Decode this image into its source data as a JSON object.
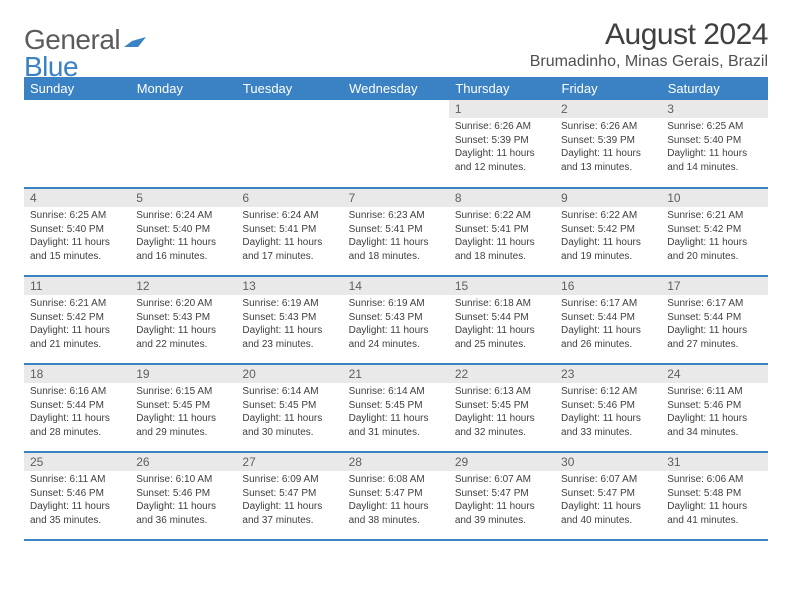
{
  "logo": {
    "word1": "General",
    "word2": "Blue"
  },
  "title": "August 2024",
  "location": "Brumadinho, Minas Gerais, Brazil",
  "colors": {
    "header_bg": "#3b82c4",
    "header_text": "#ffffff",
    "daynum_bg": "#e9e9e9",
    "daynum_text": "#606060",
    "body_text": "#404040",
    "rule": "#3b82c4",
    "logo_gray": "#5b5b5b",
    "logo_blue": "#3b82c4"
  },
  "typography": {
    "title_fontsize": 30,
    "location_fontsize": 16,
    "header_fontsize": 13,
    "daynum_fontsize": 12,
    "body_fontsize": 10
  },
  "weekdays": [
    "Sunday",
    "Monday",
    "Tuesday",
    "Wednesday",
    "Thursday",
    "Friday",
    "Saturday"
  ],
  "weeks": [
    [
      null,
      null,
      null,
      null,
      {
        "n": "1",
        "sr": "Sunrise: 6:26 AM",
        "ss": "Sunset: 5:39 PM",
        "d1": "Daylight: 11 hours",
        "d2": "and 12 minutes."
      },
      {
        "n": "2",
        "sr": "Sunrise: 6:26 AM",
        "ss": "Sunset: 5:39 PM",
        "d1": "Daylight: 11 hours",
        "d2": "and 13 minutes."
      },
      {
        "n": "3",
        "sr": "Sunrise: 6:25 AM",
        "ss": "Sunset: 5:40 PM",
        "d1": "Daylight: 11 hours",
        "d2": "and 14 minutes."
      }
    ],
    [
      {
        "n": "4",
        "sr": "Sunrise: 6:25 AM",
        "ss": "Sunset: 5:40 PM",
        "d1": "Daylight: 11 hours",
        "d2": "and 15 minutes."
      },
      {
        "n": "5",
        "sr": "Sunrise: 6:24 AM",
        "ss": "Sunset: 5:40 PM",
        "d1": "Daylight: 11 hours",
        "d2": "and 16 minutes."
      },
      {
        "n": "6",
        "sr": "Sunrise: 6:24 AM",
        "ss": "Sunset: 5:41 PM",
        "d1": "Daylight: 11 hours",
        "d2": "and 17 minutes."
      },
      {
        "n": "7",
        "sr": "Sunrise: 6:23 AM",
        "ss": "Sunset: 5:41 PM",
        "d1": "Daylight: 11 hours",
        "d2": "and 18 minutes."
      },
      {
        "n": "8",
        "sr": "Sunrise: 6:22 AM",
        "ss": "Sunset: 5:41 PM",
        "d1": "Daylight: 11 hours",
        "d2": "and 18 minutes."
      },
      {
        "n": "9",
        "sr": "Sunrise: 6:22 AM",
        "ss": "Sunset: 5:42 PM",
        "d1": "Daylight: 11 hours",
        "d2": "and 19 minutes."
      },
      {
        "n": "10",
        "sr": "Sunrise: 6:21 AM",
        "ss": "Sunset: 5:42 PM",
        "d1": "Daylight: 11 hours",
        "d2": "and 20 minutes."
      }
    ],
    [
      {
        "n": "11",
        "sr": "Sunrise: 6:21 AM",
        "ss": "Sunset: 5:42 PM",
        "d1": "Daylight: 11 hours",
        "d2": "and 21 minutes."
      },
      {
        "n": "12",
        "sr": "Sunrise: 6:20 AM",
        "ss": "Sunset: 5:43 PM",
        "d1": "Daylight: 11 hours",
        "d2": "and 22 minutes."
      },
      {
        "n": "13",
        "sr": "Sunrise: 6:19 AM",
        "ss": "Sunset: 5:43 PM",
        "d1": "Daylight: 11 hours",
        "d2": "and 23 minutes."
      },
      {
        "n": "14",
        "sr": "Sunrise: 6:19 AM",
        "ss": "Sunset: 5:43 PM",
        "d1": "Daylight: 11 hours",
        "d2": "and 24 minutes."
      },
      {
        "n": "15",
        "sr": "Sunrise: 6:18 AM",
        "ss": "Sunset: 5:44 PM",
        "d1": "Daylight: 11 hours",
        "d2": "and 25 minutes."
      },
      {
        "n": "16",
        "sr": "Sunrise: 6:17 AM",
        "ss": "Sunset: 5:44 PM",
        "d1": "Daylight: 11 hours",
        "d2": "and 26 minutes."
      },
      {
        "n": "17",
        "sr": "Sunrise: 6:17 AM",
        "ss": "Sunset: 5:44 PM",
        "d1": "Daylight: 11 hours",
        "d2": "and 27 minutes."
      }
    ],
    [
      {
        "n": "18",
        "sr": "Sunrise: 6:16 AM",
        "ss": "Sunset: 5:44 PM",
        "d1": "Daylight: 11 hours",
        "d2": "and 28 minutes."
      },
      {
        "n": "19",
        "sr": "Sunrise: 6:15 AM",
        "ss": "Sunset: 5:45 PM",
        "d1": "Daylight: 11 hours",
        "d2": "and 29 minutes."
      },
      {
        "n": "20",
        "sr": "Sunrise: 6:14 AM",
        "ss": "Sunset: 5:45 PM",
        "d1": "Daylight: 11 hours",
        "d2": "and 30 minutes."
      },
      {
        "n": "21",
        "sr": "Sunrise: 6:14 AM",
        "ss": "Sunset: 5:45 PM",
        "d1": "Daylight: 11 hours",
        "d2": "and 31 minutes."
      },
      {
        "n": "22",
        "sr": "Sunrise: 6:13 AM",
        "ss": "Sunset: 5:45 PM",
        "d1": "Daylight: 11 hours",
        "d2": "and 32 minutes."
      },
      {
        "n": "23",
        "sr": "Sunrise: 6:12 AM",
        "ss": "Sunset: 5:46 PM",
        "d1": "Daylight: 11 hours",
        "d2": "and 33 minutes."
      },
      {
        "n": "24",
        "sr": "Sunrise: 6:11 AM",
        "ss": "Sunset: 5:46 PM",
        "d1": "Daylight: 11 hours",
        "d2": "and 34 minutes."
      }
    ],
    [
      {
        "n": "25",
        "sr": "Sunrise: 6:11 AM",
        "ss": "Sunset: 5:46 PM",
        "d1": "Daylight: 11 hours",
        "d2": "and 35 minutes."
      },
      {
        "n": "26",
        "sr": "Sunrise: 6:10 AM",
        "ss": "Sunset: 5:46 PM",
        "d1": "Daylight: 11 hours",
        "d2": "and 36 minutes."
      },
      {
        "n": "27",
        "sr": "Sunrise: 6:09 AM",
        "ss": "Sunset: 5:47 PM",
        "d1": "Daylight: 11 hours",
        "d2": "and 37 minutes."
      },
      {
        "n": "28",
        "sr": "Sunrise: 6:08 AM",
        "ss": "Sunset: 5:47 PM",
        "d1": "Daylight: 11 hours",
        "d2": "and 38 minutes."
      },
      {
        "n": "29",
        "sr": "Sunrise: 6:07 AM",
        "ss": "Sunset: 5:47 PM",
        "d1": "Daylight: 11 hours",
        "d2": "and 39 minutes."
      },
      {
        "n": "30",
        "sr": "Sunrise: 6:07 AM",
        "ss": "Sunset: 5:47 PM",
        "d1": "Daylight: 11 hours",
        "d2": "and 40 minutes."
      },
      {
        "n": "31",
        "sr": "Sunrise: 6:06 AM",
        "ss": "Sunset: 5:48 PM",
        "d1": "Daylight: 11 hours",
        "d2": "and 41 minutes."
      }
    ]
  ]
}
